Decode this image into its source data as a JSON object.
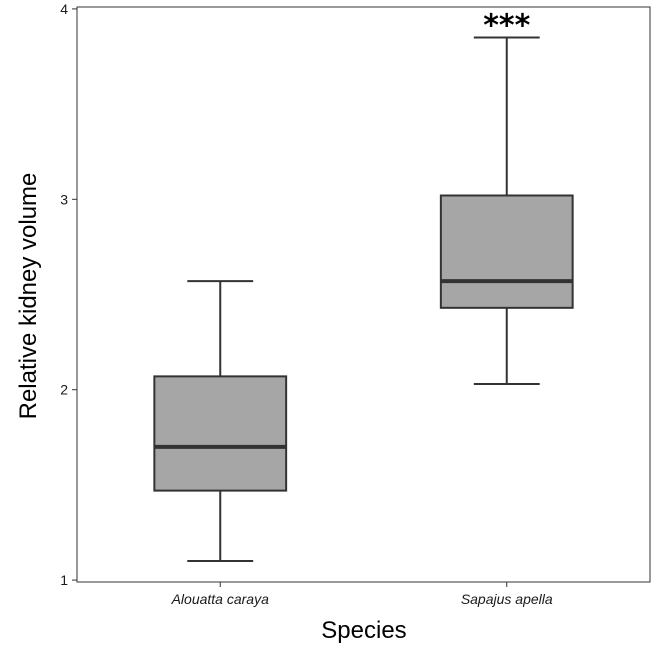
{
  "chart_data": {
    "type": "box",
    "title": "",
    "xlabel": "Species",
    "ylabel": "Relative kidney volume",
    "ylim": [
      0.99,
      4.01
    ],
    "yticks": [
      1,
      2,
      3,
      4
    ],
    "ytick_labels": [
      "1",
      "2",
      "3",
      "4"
    ],
    "grid": false,
    "colors": {
      "box_fill": "#a6a6a6",
      "box_stroke": "#333333",
      "median": "#333333",
      "whisker": "#333333",
      "panel_border": "#333333"
    },
    "categories": [
      "Alouatta caraya",
      "Sapajus apella"
    ],
    "boxes": [
      {
        "category": "Alouatta caraya",
        "min": 1.1,
        "q1": 1.47,
        "median": 1.7,
        "q3": 2.07,
        "max": 2.57
      },
      {
        "category": "Sapajus apella",
        "min": 2.03,
        "q1": 2.43,
        "median": 2.57,
        "q3": 3.02,
        "max": 3.85,
        "annotation": "***"
      }
    ]
  }
}
